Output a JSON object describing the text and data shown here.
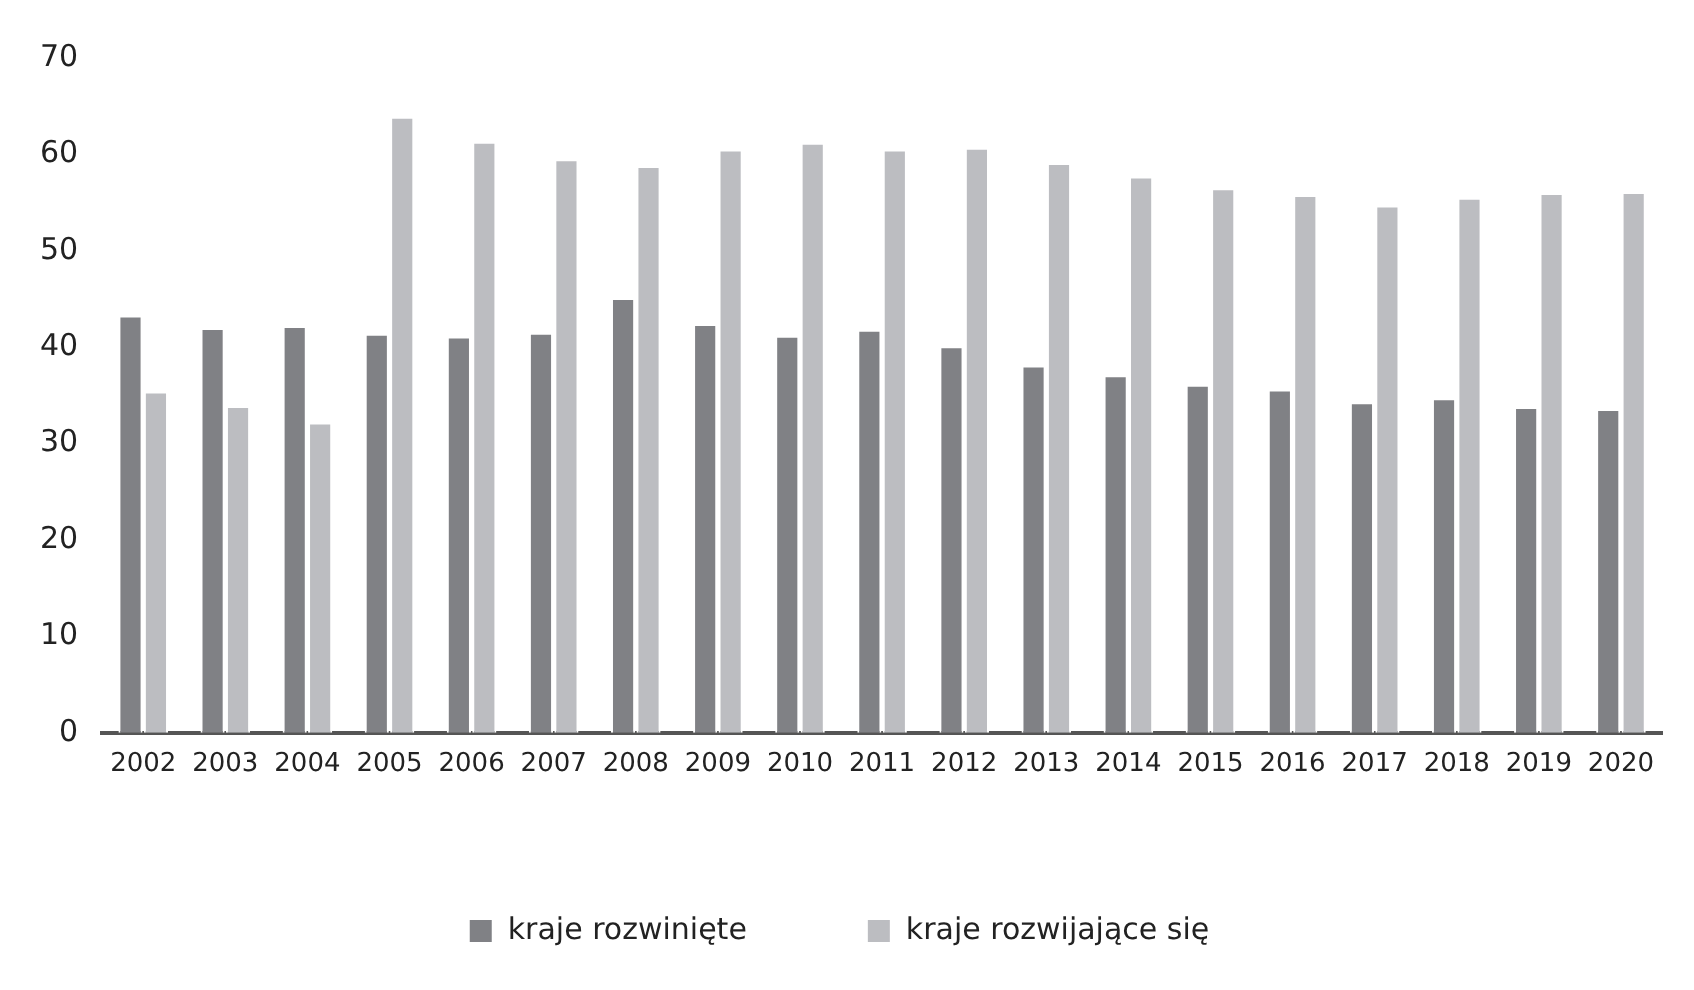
{
  "chart_data": {
    "type": "bar",
    "categories": [
      "2002",
      "2003",
      "2004",
      "2005",
      "2006",
      "2007",
      "2008",
      "2009",
      "2010",
      "2011",
      "2012",
      "2013",
      "2014",
      "2015",
      "2016",
      "2017",
      "2018",
      "2019",
      "2020"
    ],
    "series": [
      {
        "name": "kraje rozwinięte",
        "color": "#808185",
        "values": [
          43.3,
          42.0,
          42.2,
          41.4,
          41.1,
          41.5,
          45.1,
          42.4,
          41.2,
          41.8,
          40.1,
          38.1,
          37.1,
          36.1,
          35.6,
          34.3,
          34.7,
          33.8,
          33.6
        ]
      },
      {
        "name": "kraje rozwijające się",
        "color": "#bcbdc1",
        "values": [
          35.4,
          33.9,
          32.2,
          63.9,
          61.3,
          59.5,
          58.8,
          60.5,
          61.2,
          60.5,
          60.7,
          59.1,
          57.7,
          56.5,
          55.8,
          54.7,
          55.5,
          56.0,
          56.1
        ]
      }
    ],
    "ylim": [
      0,
      70
    ],
    "yticks": [
      0,
      10,
      20,
      30,
      40,
      50,
      60,
      70
    ],
    "grid": false,
    "legend": "bottom"
  }
}
